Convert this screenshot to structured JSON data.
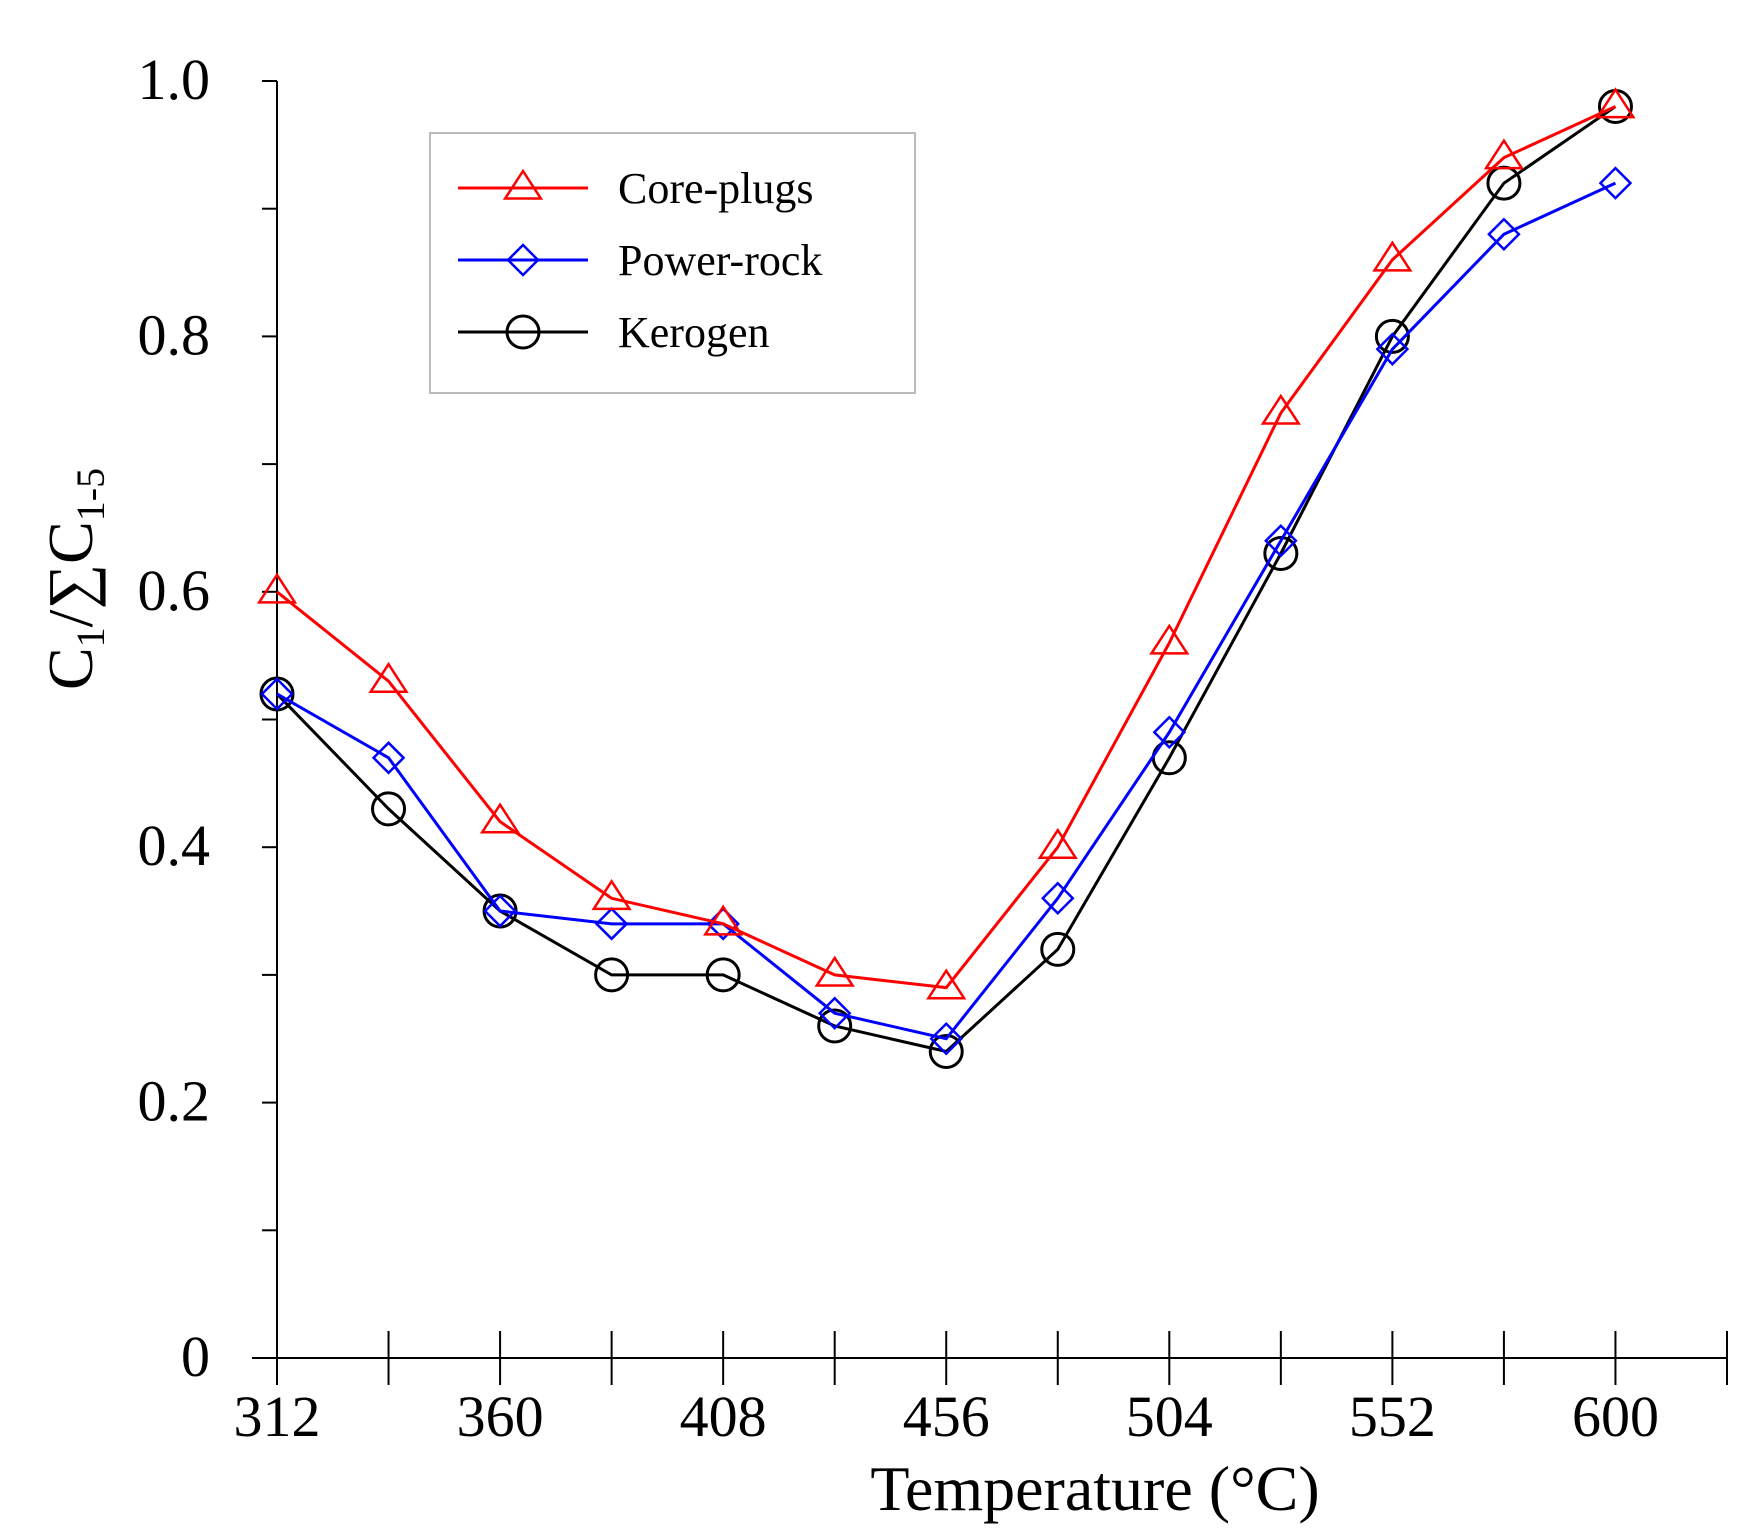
{
  "chart_data": {
    "type": "line",
    "title": "",
    "xlabel": "Temperature (°C)",
    "ylabel": {
      "base": "C",
      "sub1": "1",
      "mid": "/∑C",
      "sub2": "1-5"
    },
    "xlim": [
      312,
      624
    ],
    "ylim": [
      0,
      1.0
    ],
    "x_ticks": [
      312,
      336,
      360,
      384,
      408,
      432,
      456,
      480,
      504,
      528,
      552,
      576,
      600,
      624
    ],
    "x_tick_labels": [
      "312",
      "360",
      "408",
      "456",
      "504",
      "552",
      "600"
    ],
    "y_ticks": [
      0,
      0.1,
      0.2,
      0.3,
      0.4,
      0.5,
      0.6,
      0.7,
      0.8,
      0.9,
      1.0
    ],
    "y_tick_labels": [
      "0",
      "0.2",
      "0.4",
      "0.6",
      "0.8",
      "1.0"
    ],
    "x": [
      312,
      336,
      360,
      384,
      408,
      432,
      456,
      480,
      504,
      528,
      552,
      576,
      600
    ],
    "legend_position": "top-left",
    "series": [
      {
        "name": "Core-plugs",
        "color": "#ff0000",
        "marker": "triangle",
        "values": [
          0.6,
          0.53,
          0.42,
          0.36,
          0.34,
          0.3,
          0.29,
          0.4,
          0.56,
          0.74,
          0.86,
          0.94,
          0.98
        ]
      },
      {
        "name": "Power-rock",
        "color": "#0000ff",
        "marker": "diamond",
        "values": [
          0.52,
          0.47,
          0.35,
          0.34,
          0.34,
          0.27,
          0.25,
          0.36,
          0.49,
          0.64,
          0.79,
          0.88,
          0.92
        ]
      },
      {
        "name": "Kerogen",
        "color": "#000000",
        "marker": "circle",
        "values": [
          0.52,
          0.43,
          0.35,
          0.3,
          0.3,
          0.26,
          0.24,
          0.32,
          0.47,
          0.63,
          0.8,
          0.92,
          0.98
        ]
      }
    ]
  }
}
